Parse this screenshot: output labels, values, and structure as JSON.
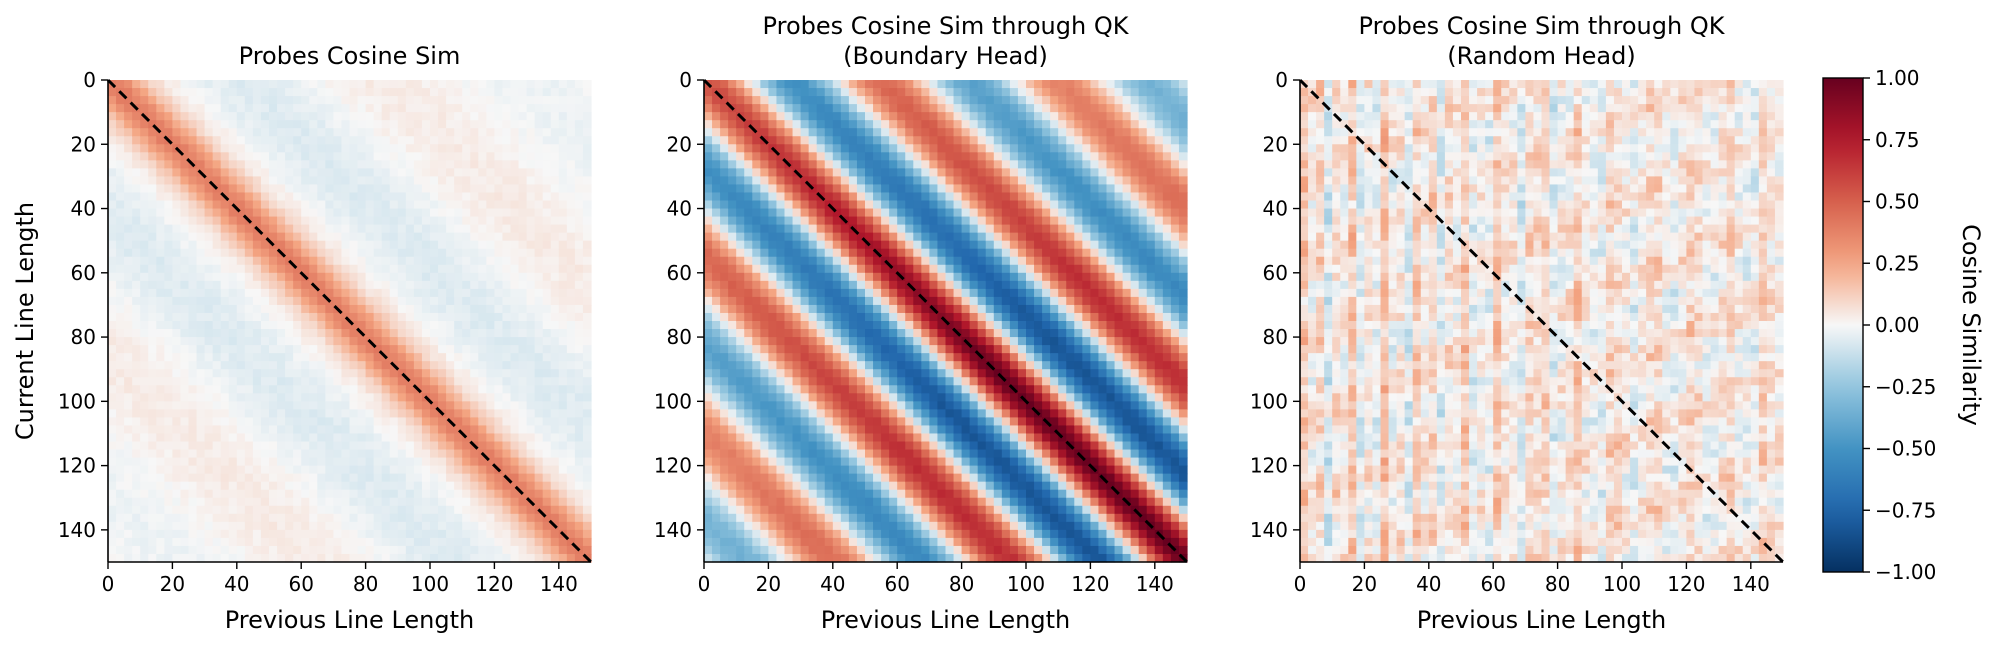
{
  "chart_data": [
    {
      "type": "heatmap",
      "pattern": "weak",
      "title_lines": [
        "Probes Cosine Sim"
      ],
      "xlabel": "Previous Line Length",
      "ylabel": "Current Line Length",
      "x_ticks": [
        "0",
        "20",
        "40",
        "60",
        "80",
        "100",
        "120",
        "140"
      ],
      "y_ticks": [
        "0",
        "20",
        "40",
        "60",
        "80",
        "100",
        "120",
        "140"
      ],
      "x_range": [
        0,
        150
      ],
      "y_range": [
        0,
        150
      ],
      "diagonal": "dashed identity line y = x"
    },
    {
      "type": "heatmap",
      "pattern": "strong",
      "title_lines": [
        "Probes Cosine Sim through QK",
        "(Boundary Head)"
      ],
      "xlabel": "Previous Line Length",
      "ylabel": "",
      "x_ticks": [
        "0",
        "20",
        "40",
        "60",
        "80",
        "100",
        "120",
        "140"
      ],
      "y_ticks": [
        "0",
        "20",
        "40",
        "60",
        "80",
        "100",
        "120",
        "140"
      ],
      "x_range": [
        0,
        150
      ],
      "y_range": [
        0,
        150
      ],
      "diagonal": "dashed identity line y = x"
    },
    {
      "type": "heatmap",
      "pattern": "random",
      "title_lines": [
        "Probes Cosine Sim through QK",
        "(Random Head)"
      ],
      "xlabel": "Previous Line Length",
      "ylabel": "",
      "x_ticks": [
        "0",
        "20",
        "40",
        "60",
        "80",
        "100",
        "120",
        "140"
      ],
      "y_ticks": [
        "0",
        "20",
        "40",
        "60",
        "80",
        "100",
        "120",
        "140"
      ],
      "x_range": [
        0,
        150
      ],
      "y_range": [
        0,
        150
      ],
      "diagonal": "dashed identity line y = x"
    }
  ],
  "colorbar": {
    "label": "Cosine Similarity",
    "range": [
      -1.0,
      1.0
    ],
    "ticks": [
      "1.00",
      "0.75",
      "0.50",
      "0.25",
      "0.00",
      "−0.25",
      "−0.50",
      "−0.75",
      "−1.00"
    ],
    "colormap": "RdBu_r",
    "colors": {
      "max": "#67001f",
      "high": "#d6604d",
      "mid": "#f7f7f7",
      "low": "#4393c3",
      "min": "#053061"
    }
  }
}
